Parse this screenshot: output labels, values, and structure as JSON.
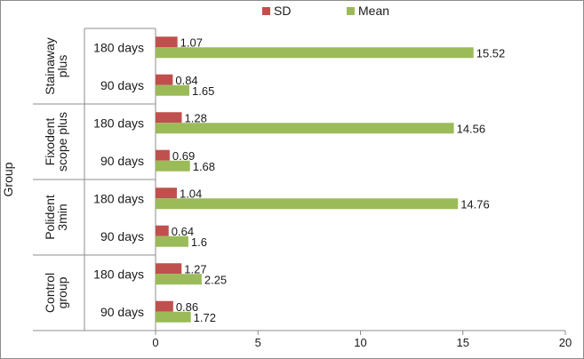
{
  "chart_data": {
    "type": "bar",
    "orientation": "horizontal",
    "xlabel": "",
    "ylabel": "Group",
    "xlim": [
      0,
      20
    ],
    "x_ticks": [
      "0",
      "5",
      "10",
      "15",
      "20"
    ],
    "grid": false,
    "legend_position": "top",
    "groups": [
      {
        "label": "Stainaway plus",
        "label_lines": [
          "Stainaway",
          "plus"
        ],
        "categories": [
          "180 days",
          "90 days"
        ]
      },
      {
        "label": "Fixodent scope plus",
        "label_lines": [
          "Fixodent",
          "scope plus"
        ],
        "categories": [
          "180 days",
          "90 days"
        ]
      },
      {
        "label": "Polident 3min",
        "label_lines": [
          "Polident",
          "3min"
        ],
        "categories": [
          "180 days",
          "90 days"
        ]
      },
      {
        "label": "Control group",
        "label_lines": [
          "Control",
          "group"
        ],
        "categories": [
          "180 days",
          "90 days"
        ]
      }
    ],
    "categories": [
      "180 days",
      "90 days",
      "180 days",
      "90 days",
      "180 days",
      "90 days",
      "180 days",
      "90 days"
    ],
    "series": [
      {
        "name": "SD",
        "color": "#c0504d",
        "values": [
          1.07,
          0.84,
          1.28,
          0.69,
          1.04,
          0.64,
          1.27,
          0.86
        ],
        "labels": [
          "1.07",
          "0.84",
          "1.28",
          "0.69",
          "1.04",
          "0.64",
          "1.27",
          "0.86"
        ]
      },
      {
        "name": "Mean",
        "color": "#9bbb59",
        "values": [
          15.52,
          1.65,
          14.56,
          1.68,
          14.76,
          1.6,
          2.25,
          1.72
        ],
        "labels": [
          "15.52",
          "1.65",
          "14.56",
          "1.68",
          "14.76",
          "1.6",
          "2.25",
          "1.72"
        ]
      }
    ]
  }
}
